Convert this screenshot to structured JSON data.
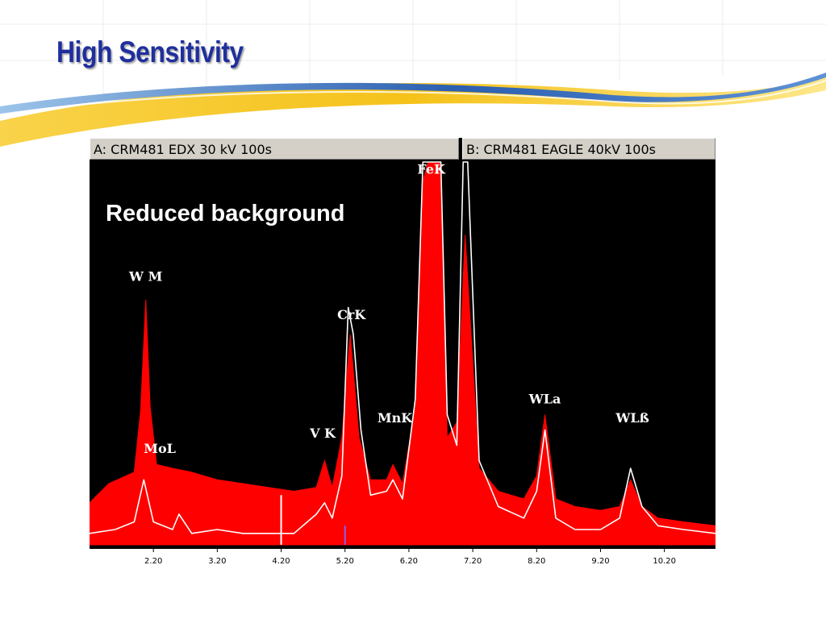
{
  "slide": {
    "title": "High Sensitivity",
    "swoosh_colors": {
      "blue": "#2b5fb0",
      "light_blue": "#9cc4ea",
      "yellow": "#f5c21a"
    }
  },
  "chart_data": {
    "type": "area",
    "title": "",
    "xlabel": "",
    "ylabel": "",
    "header_a": "A: CRM481 EDX 30 kV 100s",
    "header_b": "B: CRM481 EAGLE 40kV 100s",
    "annotation": "Reduced background",
    "x_ticks": [
      "2.20",
      "3.20",
      "4.20",
      "5.20",
      "6.20",
      "7.20",
      "8.20",
      "9.20",
      "10.20"
    ],
    "xlim": [
      1.2,
      11.0
    ],
    "ylim": [
      0,
      100
    ],
    "grid": false,
    "series": [
      {
        "name": "A: CRM481 EDX 30 kV 100s",
        "style": "filled",
        "color": "#ff0000",
        "x": [
          1.2,
          1.5,
          1.9,
          2.0,
          2.08,
          2.15,
          2.25,
          2.5,
          2.8,
          3.2,
          3.6,
          4.0,
          4.4,
          4.75,
          4.88,
          5.0,
          5.15,
          5.28,
          5.42,
          5.6,
          5.85,
          5.95,
          6.1,
          6.3,
          6.42,
          6.5,
          6.7,
          6.8,
          6.95,
          7.08,
          7.3,
          7.6,
          8.0,
          8.2,
          8.33,
          8.5,
          8.8,
          9.2,
          9.5,
          9.67,
          9.85,
          10.1,
          10.5,
          11.0
        ],
        "y": [
          11,
          16,
          19,
          35,
          64,
          36,
          21,
          20,
          19,
          17,
          16,
          15,
          14,
          15,
          22,
          15,
          28,
          55,
          28,
          17,
          17,
          21,
          16,
          36,
          95,
          100,
          100,
          28,
          32,
          81,
          20,
          14,
          12,
          18,
          34,
          12,
          10,
          9,
          10,
          17,
          10,
          7,
          6,
          5
        ]
      },
      {
        "name": "B: CRM481 EAGLE 40kV 100s",
        "style": "line",
        "color": "#ffffff",
        "x": [
          1.2,
          1.6,
          1.9,
          2.05,
          2.2,
          2.5,
          2.6,
          2.8,
          3.2,
          3.6,
          4.0,
          4.4,
          4.75,
          4.88,
          5.0,
          5.15,
          5.25,
          5.33,
          5.45,
          5.6,
          5.85,
          5.95,
          6.1,
          6.3,
          6.42,
          6.5,
          6.7,
          6.8,
          6.95,
          7.05,
          7.12,
          7.3,
          7.6,
          8.0,
          8.2,
          8.33,
          8.5,
          8.8,
          9.2,
          9.5,
          9.67,
          9.85,
          10.1,
          10.5,
          11.0
        ],
        "y": [
          3,
          4,
          6,
          17,
          6,
          4,
          8,
          3,
          4,
          3,
          3,
          3,
          8,
          11,
          7,
          18,
          62,
          55,
          30,
          13,
          14,
          17,
          12,
          38,
          100,
          100,
          100,
          34,
          26,
          100,
          100,
          22,
          10,
          7,
          14,
          30,
          7,
          4,
          4,
          7,
          20,
          10,
          5,
          4,
          3
        ]
      }
    ],
    "peak_labels": [
      {
        "text": "W M",
        "x": 2.08,
        "y": 69
      },
      {
        "text": "MoL",
        "x": 2.3,
        "y": 24
      },
      {
        "text": "V K",
        "x": 4.85,
        "y": 28
      },
      {
        "text": "CrK",
        "x": 5.3,
        "y": 59
      },
      {
        "text": "MnK",
        "x": 5.98,
        "y": 32
      },
      {
        "text": "FeK",
        "x": 6.55,
        "y": 97
      },
      {
        "text": "WLa",
        "x": 8.33,
        "y": 37
      },
      {
        "text": "WLß",
        "x": 9.7,
        "y": 32
      }
    ],
    "markers": [
      {
        "x": 4.2,
        "y": 13,
        "color": "#ffffff"
      },
      {
        "x": 5.2,
        "y": 5,
        "color": "#8a5cf0"
      }
    ]
  }
}
